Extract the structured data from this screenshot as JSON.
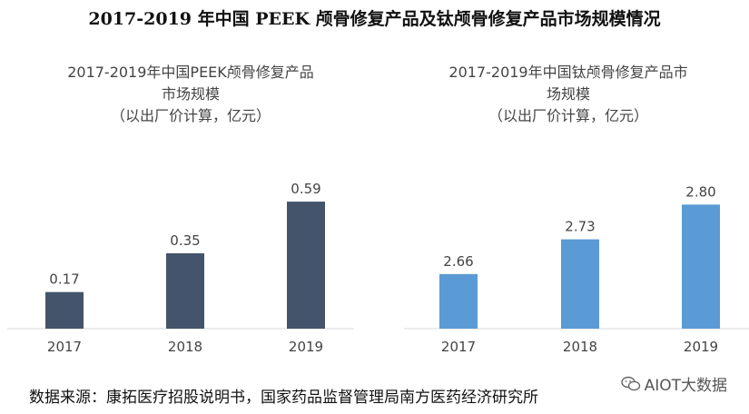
{
  "main_title": "2017-2019 年中国 PEEK 颅骨修复产品及钛颅骨修复产品市场规模情况",
  "chart_data": [
    {
      "type": "bar",
      "title_lines": [
        "2017-2019年中国PEEK颅骨修复产品",
        "市场规模",
        "（以出厂价计算，亿元）"
      ],
      "categories": [
        "2017",
        "2018",
        "2019"
      ],
      "values": [
        0.17,
        0.35,
        0.59
      ],
      "value_labels": [
        "0.17",
        "0.35",
        "0.59"
      ],
      "ylim": [
        0,
        0.7
      ],
      "color": "#44546a"
    },
    {
      "type": "bar",
      "title_lines": [
        "2017-2019年中国钛颅骨修复产品市",
        "场规模",
        "（以出厂价计算，亿元）"
      ],
      "categories": [
        "2017",
        "2018",
        "2019"
      ],
      "values": [
        2.66,
        2.73,
        2.8
      ],
      "value_labels": [
        "2.66",
        "2.73",
        "2.80"
      ],
      "ylim": [
        2.55,
        2.85
      ],
      "color": "#5b9bd5"
    }
  ],
  "source": "数据来源：康拓医疗招股说明书，国家药品监督管理局南方医药经济研究所",
  "watermark": "AIOT大数据"
}
